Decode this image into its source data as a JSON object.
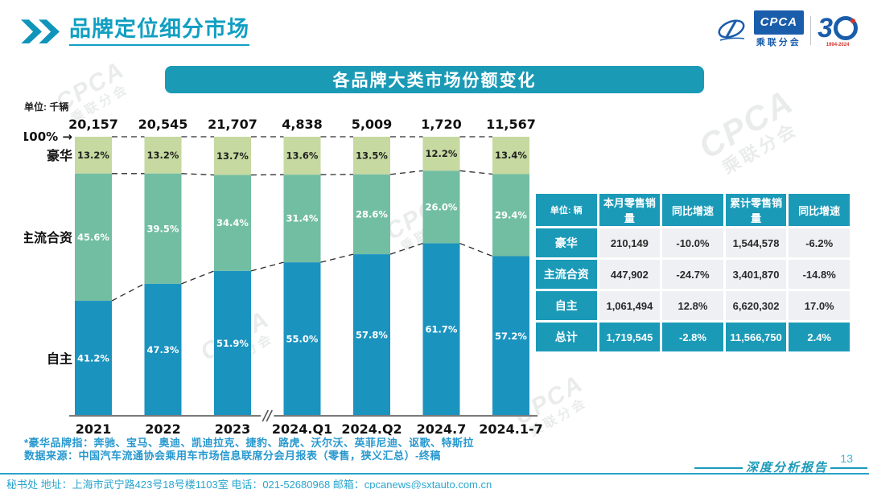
{
  "header": {
    "title": "品牌定位细分市场",
    "logo": {
      "cpca": "CPCA",
      "sub": "乘联分会",
      "anniversary_3": "3",
      "years": "1994-2024"
    }
  },
  "banner": {
    "title": "各品牌大类市场份额变化"
  },
  "unit_label": "单位: 千辆",
  "chart_data": {
    "type": "bar",
    "stacked": true,
    "title": "各品牌大类市场份额变化",
    "unit": "千辆",
    "axis_top_label": "100% →",
    "ylim": [
      0,
      100
    ],
    "axis_break_after_index": 2,
    "categories": [
      "2021",
      "2022",
      "2023",
      "2024.Q1",
      "2024.Q2",
      "2024.7",
      "2024.1-7"
    ],
    "totals": [
      "20,157",
      "20,545",
      "21,707",
      "4,838",
      "5,009",
      "1,720",
      "11,567"
    ],
    "series": [
      {
        "name": "豪华",
        "color": "#c6d9a0",
        "label_color": "#1f1f1f",
        "values": [
          13.2,
          13.2,
          13.7,
          13.6,
          13.5,
          12.2,
          13.4
        ]
      },
      {
        "name": "主流合资",
        "color": "#72bea3",
        "label_color": "#ffffff",
        "values": [
          45.6,
          39.5,
          34.4,
          31.4,
          28.6,
          26.0,
          29.4
        ]
      },
      {
        "name": "自主",
        "color": "#1b93bf",
        "label_color": "#ffffff",
        "values": [
          41.2,
          47.3,
          51.9,
          55.0,
          57.8,
          61.7,
          57.2
        ]
      }
    ]
  },
  "table": {
    "headers": [
      "单位: 辆",
      "本月零售销量",
      "同比增速",
      "累计零售销量",
      "同比增速"
    ],
    "rows": [
      {
        "label": "豪华",
        "cells": [
          "210,149",
          "-10.0%",
          "1,544,578",
          "-6.2%"
        ],
        "total": false
      },
      {
        "label": "主流合资",
        "cells": [
          "447,902",
          "-24.7%",
          "3,401,870",
          "-14.8%"
        ],
        "total": false
      },
      {
        "label": "自主",
        "cells": [
          "1,061,494",
          "12.8%",
          "6,620,302",
          "17.0%"
        ],
        "total": false
      },
      {
        "label": "总计",
        "cells": [
          "1,719,545",
          "-2.8%",
          "11,566,750",
          "2.4%"
        ],
        "total": true
      }
    ]
  },
  "footnotes": {
    "line1": "*豪华品牌指：奔驰、宝马、奥迪、凯迪拉克、捷豹、路虎、沃尔沃、英菲尼迪、讴歌、特斯拉",
    "line2": "数据来源：中国汽车流通协会乘用车市场信息联席分会月报表（零售，狭义汇总）-终稿"
  },
  "footer": {
    "contact": "秘书处  地址：上海市武宁路423号18号楼1103室  电话：021-52680968  邮箱：cpcanews@sxtauto.com.cn",
    "report_label": "深度分析报告",
    "page": "13"
  },
  "watermark": {
    "line1": "CPCA",
    "line2": "乘联分会"
  },
  "colors": {
    "brand_teal": "#1b9ab8",
    "bar_blue": "#1b93bf",
    "mid_green": "#72bea3",
    "light_green": "#c6d9a0"
  }
}
